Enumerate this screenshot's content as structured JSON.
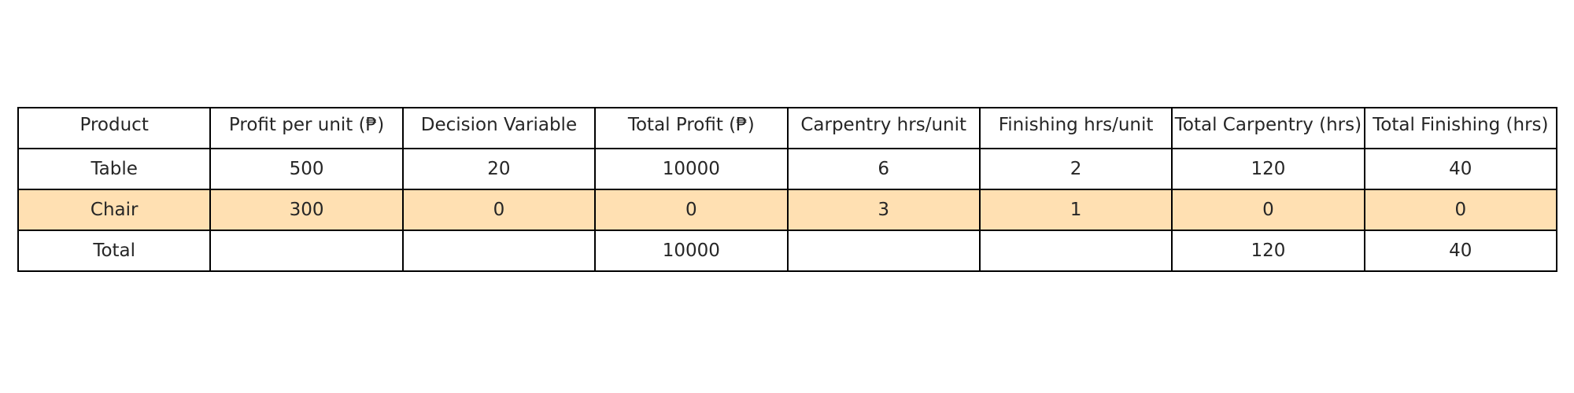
{
  "chart_data": {
    "type": "table",
    "columns": [
      "Product",
      "Profit per unit (₱)",
      "Decision Variable",
      "Total Profit (₱)",
      "Carpentry hrs/unit",
      "Finishing hrs/unit",
      "Total Carpentry (hrs)",
      "Total Finishing (hrs)"
    ],
    "rows": [
      [
        "Table",
        "500",
        "20",
        "10000",
        "6",
        "2",
        "120",
        "40"
      ],
      [
        "Chair",
        "300",
        "0",
        "0",
        "3",
        "1",
        "0",
        "0"
      ],
      [
        "Total",
        "",
        "",
        "10000",
        "",
        "",
        "120",
        "40"
      ]
    ],
    "highlighted_row_index": 1,
    "colors": {
      "highlight": "#ffe0b2",
      "border": "#000000",
      "text": "#262626"
    }
  }
}
